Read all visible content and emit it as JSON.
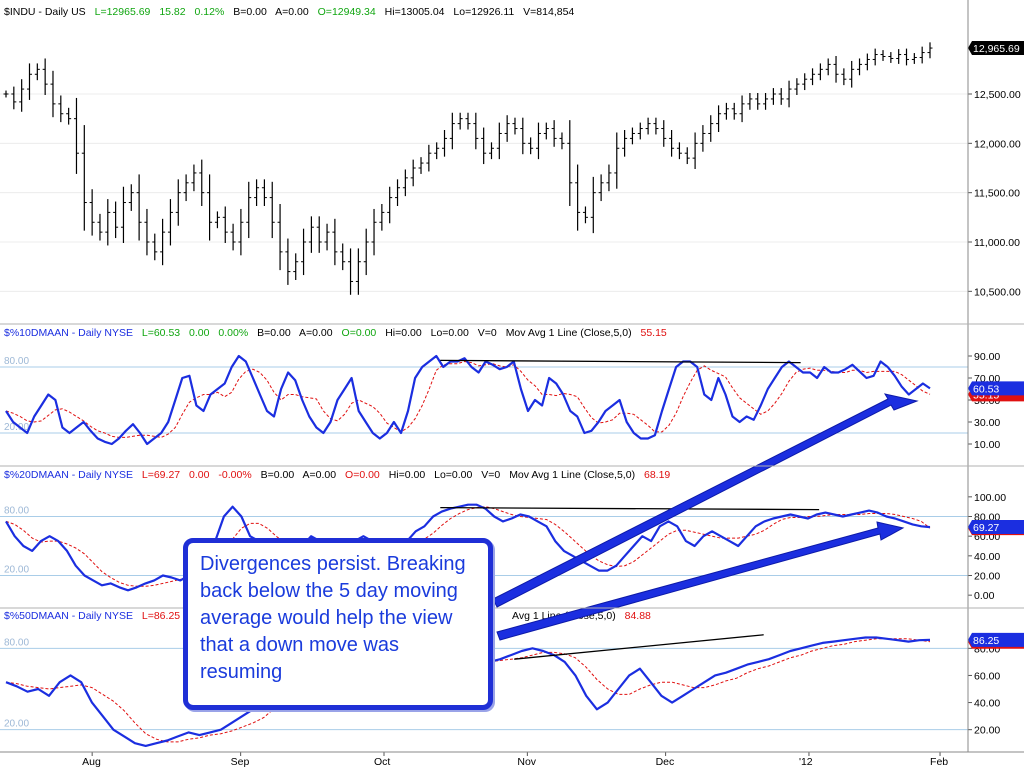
{
  "chart_data": {
    "type": "line",
    "x_labels": [
      "Aug",
      "Sep",
      "Oct",
      "Nov",
      "Dec",
      "'12",
      "Feb"
    ],
    "panels": [
      {
        "id": "price",
        "type": "ohlc",
        "header": {
          "symbol": "$INDU - Daily  US",
          "last": "L=12965.69",
          "change": "15.82",
          "pct": "0.12%",
          "bid": "B=0.00",
          "ask": "A=0.00",
          "open": "O=12949.34",
          "high": "Hi=13005.04",
          "low": "Lo=12926.11",
          "volume": "V=814,854"
        },
        "ylim": [
          10250,
          13250
        ],
        "yticks": [
          "10,500.00",
          "11,000.00",
          "11,500.00",
          "12,000.00",
          "12,500.00"
        ],
        "ytick_values": [
          10500,
          11000,
          11500,
          12000,
          12500
        ],
        "last_label": "12,965.69",
        "last_value": 12965.69,
        "close": [
          12500,
          12420,
          12550,
          12700,
          12750,
          12600,
          12400,
          12300,
          12250,
          11900,
          11400,
          11200,
          11100,
          11300,
          11150,
          11400,
          11500,
          11200,
          11000,
          10900,
          11100,
          11300,
          11500,
          11600,
          11700,
          11500,
          11200,
          11250,
          11100,
          11000,
          11200,
          11450,
          11550,
          11450,
          11200,
          10900,
          10700,
          10800,
          11000,
          11150,
          11000,
          11100,
          10900,
          10800,
          10600,
          10800,
          11000,
          11200,
          11300,
          11450,
          11550,
          11650,
          11750,
          11800,
          11900,
          11950,
          12050,
          12200,
          12250,
          12200,
          12050,
          11900,
          11950,
          12100,
          12200,
          12150,
          12000,
          11950,
          12100,
          12150,
          12050,
          12000,
          11600,
          11300,
          11250,
          11500,
          11600,
          11700,
          11950,
          12050,
          12100,
          12150,
          12200,
          12150,
          12050,
          11950,
          11900,
          11850,
          12000,
          12100,
          12200,
          12300,
          12350,
          12300,
          12400,
          12450,
          12400,
          12450,
          12500,
          12450,
          12550,
          12600,
          12650,
          12700,
          12750,
          12800,
          12700,
          12650,
          12750,
          12800,
          12850,
          12900,
          12880,
          12860,
          12900,
          12850,
          12870,
          12920,
          12965.69
        ]
      },
      {
        "id": "p10",
        "header": {
          "symbol": "$%10DMAAN - Daily  NYSE",
          "last": "L=60.53",
          "change": "0.00",
          "pct": "0.00%",
          "bid": "B=0.00",
          "ask": "A=0.00",
          "open": "O=0.00",
          "high": "Hi=0.00",
          "low": "Lo=0.00",
          "volume": "V=0",
          "ma_label": "Mov Avg 1 Line (Close,5,0)",
          "ma_value": "55.15"
        },
        "ylim": [
          0,
          100
        ],
        "yticks": [
          "10.00",
          "30.00",
          "50.00",
          "70.00",
          "90.00"
        ],
        "ytick_values": [
          10,
          30,
          50,
          70,
          90
        ],
        "ref_labels": [
          "80.00",
          "20.00"
        ],
        "ref_values": [
          80,
          20
        ],
        "last_label": "60.53",
        "last_value": 60.53,
        "ma_last_label": "55.15",
        "ma_last_value": 55.15,
        "values": [
          40,
          30,
          25,
          20,
          35,
          45,
          55,
          50,
          25,
          20,
          25,
          30,
          22,
          15,
          12,
          10,
          15,
          22,
          28,
          20,
          10,
          15,
          20,
          30,
          50,
          70,
          72,
          45,
          40,
          55,
          60,
          65,
          80,
          90,
          85,
          70,
          55,
          40,
          35,
          60,
          75,
          68,
          50,
          35,
          25,
          20,
          30,
          50,
          60,
          70,
          40,
          30,
          20,
          15,
          20,
          30,
          20,
          40,
          70,
          80,
          85,
          90,
          80,
          85,
          85,
          88,
          80,
          75,
          85,
          82,
          78,
          80,
          85,
          60,
          40,
          50,
          45,
          70,
          65,
          55,
          40,
          35,
          20,
          22,
          30,
          40,
          45,
          50,
          30,
          20,
          15,
          15,
          18,
          40,
          60,
          80,
          85,
          85,
          80,
          55,
          50,
          70,
          55,
          35,
          30,
          35,
          32,
          45,
          60,
          70,
          80,
          85,
          80,
          75,
          75,
          70,
          80,
          75,
          75,
          78,
          82,
          76,
          70,
          72,
          85,
          80,
          72,
          62,
          55,
          60,
          65,
          60.53
        ],
        "ma": [
          40,
          38,
          35,
          31,
          30,
          31,
          36,
          41,
          42,
          39,
          35,
          31,
          26,
          22,
          20,
          17,
          16,
          16,
          17,
          18,
          18,
          17,
          16,
          19,
          25,
          37,
          48,
          52,
          55,
          55,
          57,
          53,
          57,
          69,
          76,
          78,
          75,
          68,
          57,
          50,
          55,
          55,
          53,
          52,
          51,
          40,
          33,
          31,
          37,
          47,
          50,
          47,
          44,
          38,
          29,
          25,
          21,
          25,
          33,
          45,
          60,
          77,
          82,
          83,
          83,
          85,
          84,
          81,
          82,
          83,
          81,
          80,
          82,
          76,
          68,
          63,
          55,
          55,
          54,
          56,
          55,
          53,
          43,
          34,
          29,
          30,
          32,
          38,
          38,
          37,
          32,
          27,
          21,
          21,
          27,
          38,
          53,
          66,
          77,
          81,
          77,
          74,
          71,
          61,
          52,
          47,
          42,
          37,
          40,
          47,
          56,
          67,
          75,
          78,
          79,
          77,
          77,
          76,
          75,
          75,
          77,
          77,
          75,
          76,
          76,
          76,
          76,
          73,
          68,
          63,
          58,
          55.15
        ],
        "trend": [
          [
            47,
            86
          ],
          [
            86,
            84
          ]
        ]
      },
      {
        "id": "p20",
        "header": {
          "symbol": "$%20DMAAN - Daily  NYSE",
          "last": "L=69.27",
          "change": "0.00",
          "pct": "-0.00%",
          "bid": "B=0.00",
          "ask": "A=0.00",
          "open": "O=0.00",
          "high": "Hi=0.00",
          "low": "Lo=0.00",
          "volume": "V=0",
          "ma_label": "Mov Avg 1 Line (Close,5,0)",
          "ma_value": "68.19"
        },
        "ylim": [
          -10,
          110
        ],
        "yticks": [
          "0.00",
          "20.00",
          "40.00",
          "60.00",
          "80.00",
          "100.00"
        ],
        "ytick_values": [
          0,
          20,
          40,
          60,
          80,
          100
        ],
        "ref_labels": [
          "80.00",
          "20.00"
        ],
        "ref_values": [
          80,
          20
        ],
        "last_label": "69.27",
        "last_value": 69.27,
        "ma_last_label": "68.19",
        "ma_last_value": 68.19,
        "values": [
          75,
          60,
          50,
          45,
          55,
          60,
          55,
          45,
          30,
          20,
          15,
          10,
          12,
          8,
          5,
          8,
          12,
          15,
          20,
          18,
          15,
          20,
          25,
          35,
          55,
          80,
          90,
          80,
          60,
          55,
          55,
          50,
          45,
          40,
          50,
          60,
          55,
          45,
          40,
          45,
          55,
          60,
          55,
          45,
          40,
          45,
          55,
          65,
          70,
          80,
          85,
          88,
          90,
          92,
          92,
          88,
          80,
          75,
          78,
          82,
          80,
          75,
          70,
          55,
          45,
          40,
          35,
          30,
          25,
          25,
          30,
          40,
          50,
          60,
          55,
          70,
          75,
          70,
          55,
          50,
          60,
          65,
          60,
          55,
          50,
          60,
          70,
          75,
          78,
          80,
          82,
          80,
          78,
          82,
          84,
          82,
          80,
          82,
          84,
          86,
          84,
          80,
          78,
          75,
          72,
          70,
          69.27
        ],
        "ma": [
          75,
          72,
          66,
          58,
          54,
          55,
          55,
          52,
          48,
          42,
          33,
          24,
          18,
          13,
          10,
          9,
          9,
          10,
          12,
          14,
          16,
          17,
          19,
          23,
          31,
          43,
          57,
          68,
          73,
          73,
          68,
          60,
          53,
          49,
          48,
          49,
          51,
          51,
          50,
          49,
          49,
          50,
          51,
          51,
          49,
          49,
          50,
          54,
          57,
          63,
          71,
          78,
          83,
          87,
          89,
          90,
          88,
          85,
          82,
          80,
          79,
          78,
          77,
          72,
          65,
          57,
          49,
          41,
          35,
          31,
          29,
          30,
          34,
          41,
          48,
          55,
          62,
          66,
          66,
          64,
          62,
          60,
          58,
          58,
          58,
          60,
          62,
          66,
          72,
          77,
          79,
          79,
          80,
          80,
          81,
          82,
          82,
          82,
          82,
          83,
          83,
          83,
          82,
          80,
          78,
          75,
          68.19
        ],
        "trend": [
          [
            47,
            89
          ],
          [
            88,
            87
          ]
        ]
      },
      {
        "id": "p50",
        "header": {
          "symbol": "$%50DMAAN - Daily  NYSE",
          "last": "L=86.25",
          "ma_label": "Avg 1 Line (Close,5,0)",
          "ma_value": "84.88"
        },
        "ylim": [
          5,
          95
        ],
        "yticks": [
          "20.00",
          "40.00",
          "60.00",
          "80.00"
        ],
        "ytick_values": [
          20,
          40,
          60,
          80
        ],
        "ref_labels": [
          "80.00",
          "20.00"
        ],
        "ref_values": [
          80,
          20
        ],
        "last_label": "86.25",
        "last_value": 86.25,
        "ma_last_label": "84.88",
        "ma_last_value": 84.88,
        "values": [
          55,
          52,
          48,
          50,
          45,
          55,
          60,
          55,
          40,
          30,
          20,
          15,
          10,
          8,
          10,
          12,
          15,
          18,
          16,
          18,
          20,
          25,
          30,
          35,
          40,
          50,
          60,
          70,
          75,
          72,
          68,
          70,
          75,
          70,
          65,
          72,
          75,
          70,
          65,
          68,
          72,
          75,
          70,
          65,
          68,
          70,
          72,
          75,
          78,
          80,
          78,
          75,
          70,
          60,
          45,
          35,
          40,
          50,
          60,
          65,
          55,
          45,
          40,
          45,
          50,
          55,
          60,
          62,
          65,
          68,
          70,
          72,
          75,
          78,
          80,
          82,
          84,
          85,
          86,
          87,
          88,
          88,
          87,
          86,
          85,
          86,
          86.25
        ],
        "ma": [
          55,
          54,
          52,
          51,
          50,
          51,
          52,
          53,
          51,
          46,
          41,
          34,
          25,
          17,
          13,
          11,
          11,
          13,
          14,
          16,
          17,
          19,
          22,
          25,
          29,
          36,
          43,
          51,
          59,
          65,
          69,
          71,
          72,
          71,
          70,
          70,
          72,
          72,
          71,
          70,
          70,
          71,
          71,
          70,
          70,
          70,
          71,
          72,
          73,
          75,
          77,
          77,
          76,
          73,
          66,
          57,
          50,
          46,
          46,
          50,
          53,
          55,
          55,
          53,
          51,
          51,
          53,
          56,
          58,
          62,
          65,
          67,
          70,
          73,
          75,
          78,
          80,
          82,
          83,
          85,
          86,
          87,
          87,
          87,
          87,
          86,
          84.88
        ],
        "trend": [
          [
            55,
            72
          ],
          [
            82,
            90
          ]
        ]
      }
    ]
  },
  "annotation": {
    "text": "Divergences persist.  Breaking back below the 5 day moving average would help the view that a down move was resuming"
  },
  "colors": {
    "indicator": "#1b2ee0",
    "ma": "#e01010",
    "header_green": "#11a611",
    "header_red": "#e01010",
    "annotation": "#1a3bdc",
    "tag_fill": "#1b2ee0"
  }
}
